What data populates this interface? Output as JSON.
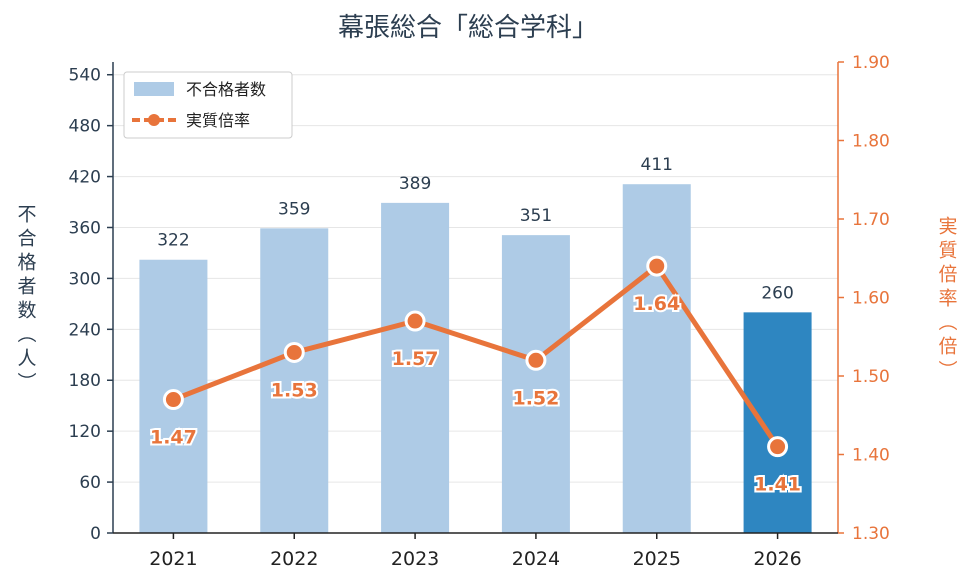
{
  "chart_data": {
    "type": "bar+line",
    "title": "幕張総合「総合学科」",
    "categories": [
      "2021",
      "2022",
      "2023",
      "2024",
      "2025",
      "2026"
    ],
    "series": [
      {
        "name": "不合格者数",
        "type": "bar",
        "axis": "left",
        "values": [
          322,
          359,
          389,
          351,
          411,
          260
        ],
        "color": "#aecbe6",
        "highlight_color": "#2e86c1",
        "highlight_index": 5
      },
      {
        "name": "実質倍率",
        "type": "line",
        "axis": "right",
        "values": [
          1.47,
          1.53,
          1.57,
          1.52,
          1.64,
          1.41
        ],
        "labels": [
          "1.47",
          "1.53",
          "1.57",
          "1.52",
          "1.64",
          "1.41"
        ],
        "color": "#e8743b"
      }
    ],
    "ylabel_left": "不合格者数（人）",
    "ylabel_right": "実質倍率（倍）",
    "ylim_left": [
      0,
      555
    ],
    "yticks_left": [
      0,
      60,
      120,
      180,
      240,
      300,
      360,
      420,
      480,
      540
    ],
    "ylim_right": [
      1.3,
      1.9
    ],
    "yticks_right": [
      "1.30",
      "1.40",
      "1.50",
      "1.60",
      "1.70",
      "1.80",
      "1.90"
    ],
    "grid": true,
    "legend_position": "top-left",
    "colors": {
      "title": "#2c3e50",
      "left_axis": "#2c3e50",
      "right_axis": "#e8743b",
      "grid": "#e6e6e6"
    }
  }
}
